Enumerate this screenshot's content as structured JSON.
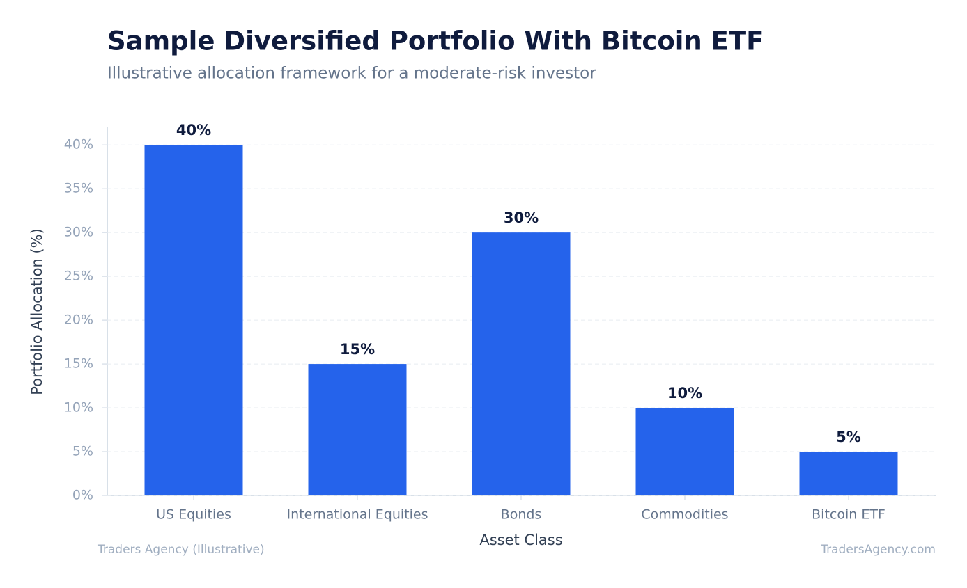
{
  "chart_data": {
    "type": "bar",
    "title": "Sample Diversified Portfolio With Bitcoin ETF",
    "subtitle": "Illustrative allocation framework for a moderate-risk investor",
    "x_label": "Asset Class",
    "y_label": "Portfolio Allocation (%)",
    "categories": [
      "US Equities",
      "International Equities",
      "Bonds",
      "Commodities",
      "Bitcoin ETF"
    ],
    "values": [
      40,
      15,
      30,
      10,
      5
    ],
    "value_labels": [
      "40%",
      "15%",
      "30%",
      "10%",
      "5%"
    ],
    "color": "#2563eb",
    "ylim": [
      0,
      42
    ],
    "yticks": [
      {
        "value": 0,
        "label": "0%"
      },
      {
        "value": 5,
        "label": "5%"
      },
      {
        "value": 10,
        "label": "10%"
      },
      {
        "value": 15,
        "label": "15%"
      },
      {
        "value": 20,
        "label": "20%"
      },
      {
        "value": 25,
        "label": "25%"
      },
      {
        "value": 30,
        "label": "30%"
      },
      {
        "value": 35,
        "label": "35%"
      },
      {
        "value": 40,
        "label": "40%"
      }
    ],
    "grid": true,
    "source": "Traders Agency (Illustrative)",
    "watermark": "TradersAgency.com"
  }
}
